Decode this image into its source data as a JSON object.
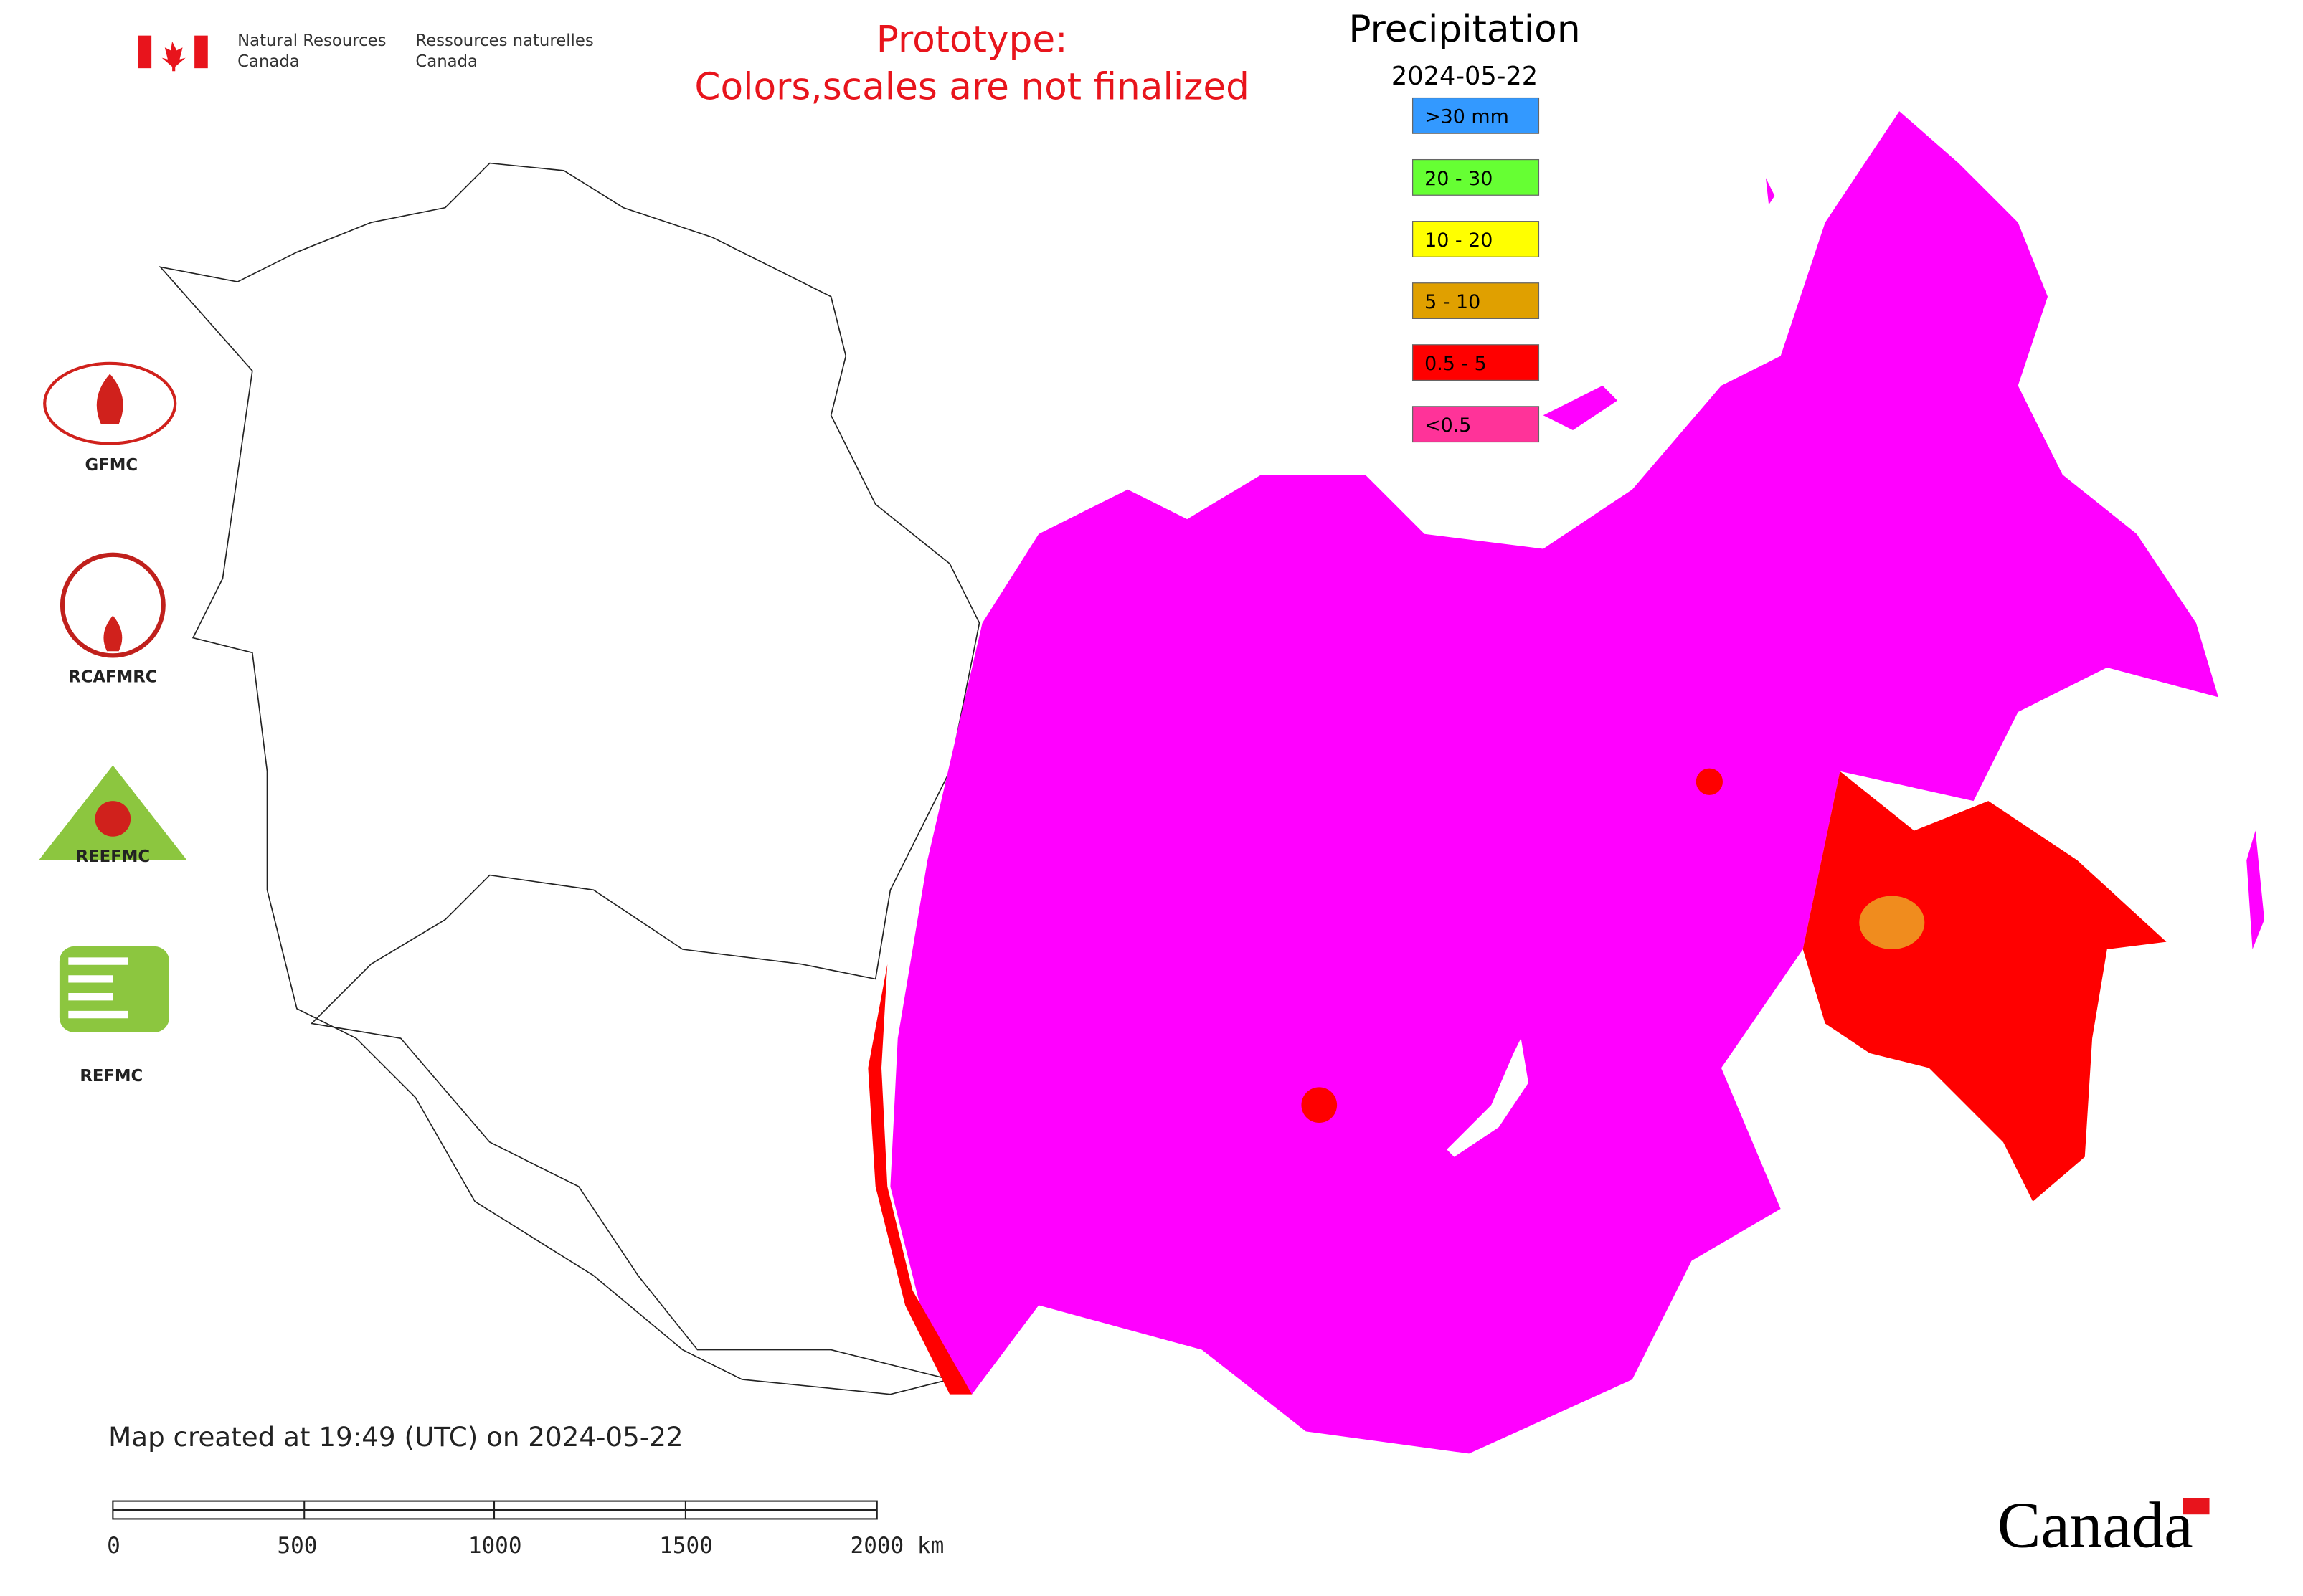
{
  "header": {
    "agency_en": [
      "Natural Resources",
      "Canada"
    ],
    "agency_fr": [
      "Ressources naturelles",
      "Canada"
    ],
    "notice": [
      "Prototype:",
      "Colors,scales are not finalized"
    ]
  },
  "legend": {
    "title": "Precipitation",
    "date": "2024-05-22",
    "entries": [
      {
        "label": ">30 mm",
        "color": "#3399ff"
      },
      {
        "label": "20 - 30",
        "color": "#66ff33"
      },
      {
        "label": "10 - 20",
        "color": "#ffff00"
      },
      {
        "label": "5 - 10",
        "color": "#e0a000"
      },
      {
        "label": "0.5 - 5",
        "color": "#ff0000"
      },
      {
        "label": "<0.5",
        "color": "#ff3399"
      }
    ]
  },
  "organizations": [
    "GFMC",
    "RCAFMRC",
    "REEFMC",
    "REFMC"
  ],
  "footer": {
    "created": "Map created at 19:49 (UTC) on 2024-05-22",
    "wordmark": "Canada"
  },
  "scale_bar": {
    "labels": [
      "0",
      "500",
      "1000",
      "1500",
      "2000 km"
    ]
  }
}
